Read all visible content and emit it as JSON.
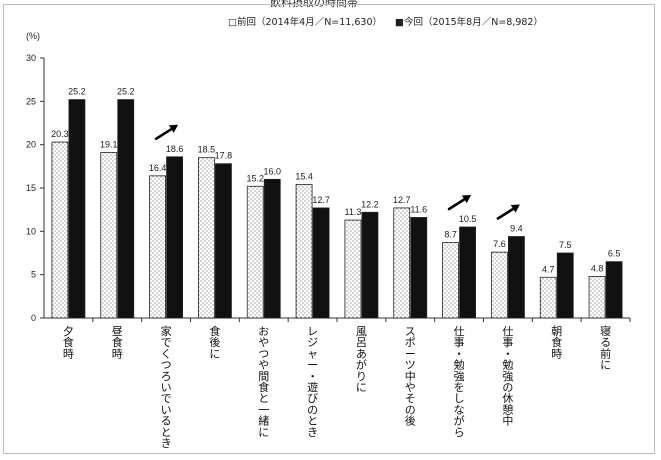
{
  "header_text": "飲料摂取の時間帯",
  "chart_data": {
    "type": "bar",
    "ylabel": "(%)",
    "ylim": [
      0,
      30
    ],
    "yticks": [
      0,
      5,
      10,
      15,
      20,
      25,
      30
    ],
    "legend_placement": "top",
    "categories": [
      "夕食時",
      "昼食時",
      "家でくつろいでいるとき",
      "食後に",
      "おやつや間食と一緒に",
      "レジャー・遊びのとき",
      "風呂あがりに",
      "スポーツ中やその後",
      "仕事・勉強をしながら",
      "仕事・勉強の休憩中",
      "朝食時",
      "寝る前に"
    ],
    "series": [
      {
        "name": "□前回（2014年4月／N=11,630）",
        "pattern": "dotted",
        "values": [
          20.3,
          19.1,
          16.4,
          18.5,
          15.2,
          15.4,
          11.3,
          12.7,
          8.7,
          7.6,
          4.7,
          4.8
        ],
        "labels": [
          "20.3",
          "19.1",
          "16.4",
          "18.5",
          "15.2",
          "15.4",
          "11.3",
          "12.7",
          "8.7",
          "7.6",
          "4.7",
          "4.8"
        ]
      },
      {
        "name": "■今回（2015年8月／N=8,982）",
        "pattern": "solid",
        "values": [
          25.2,
          25.2,
          18.6,
          17.8,
          16.0,
          12.7,
          12.2,
          11.6,
          10.5,
          9.4,
          7.5,
          6.5
        ],
        "labels": [
          "25.2",
          "25.2",
          "18.6",
          "17.8",
          "16.0",
          "12.7",
          "12.2",
          "11.6",
          "10.5",
          "9.4",
          "7.5",
          "6.5"
        ]
      }
    ],
    "annotations": [
      {
        "type": "arrow-up-right",
        "category_index": 2
      },
      {
        "type": "arrow-up-right",
        "category_index": 8
      },
      {
        "type": "arrow-up-right",
        "category_index": 9
      }
    ],
    "grid": false
  }
}
